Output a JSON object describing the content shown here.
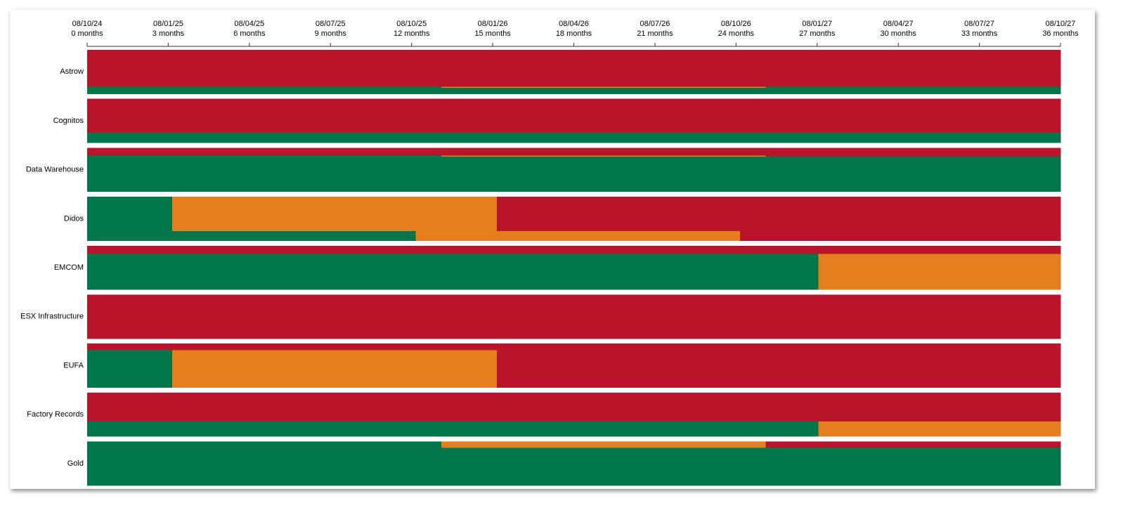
{
  "chart_data": {
    "type": "timeline",
    "title": "",
    "x_unit": "months",
    "xlim": [
      0,
      36
    ],
    "colors": {
      "red": "#b8152a",
      "orange": "#e67e1e",
      "green": "#00764a"
    },
    "ticks": [
      {
        "date": "08/10/24",
        "months": "0 months"
      },
      {
        "date": "08/01/25",
        "months": "3 months"
      },
      {
        "date": "08/04/25",
        "months": "6 months"
      },
      {
        "date": "08/07/25",
        "months": "9 months"
      },
      {
        "date": "08/10/25",
        "months": "12 months"
      },
      {
        "date": "08/01/26",
        "months": "15 months"
      },
      {
        "date": "08/04/26",
        "months": "18 months"
      },
      {
        "date": "08/07/26",
        "months": "21 months"
      },
      {
        "date": "08/10/26",
        "months": "24 months"
      },
      {
        "date": "08/01/27",
        "months": "27 months"
      },
      {
        "date": "08/04/27",
        "months": "30 months"
      },
      {
        "date": "08/07/27",
        "months": "33 months"
      },
      {
        "date": "08/10/27",
        "months": "36 months"
      }
    ],
    "rows": [
      {
        "label": "Astrow",
        "lanes": [
          {
            "share": 0.84,
            "segments": [
              {
                "start": 0,
                "end": 36,
                "status": "red"
              }
            ]
          },
          {
            "share": 0.02,
            "segments": [
              {
                "start": 0,
                "end": 13.1,
                "status": "green"
              },
              {
                "start": 13.1,
                "end": 25.1,
                "status": "orange"
              },
              {
                "start": 25.1,
                "end": 36,
                "status": "green"
              }
            ]
          },
          {
            "share": 0.14,
            "segments": [
              {
                "start": 0,
                "end": 36,
                "status": "green"
              }
            ]
          }
        ]
      },
      {
        "label": "Cognitos",
        "lanes": [
          {
            "share": 0.77,
            "segments": [
              {
                "start": 0,
                "end": 36,
                "status": "red"
              }
            ]
          },
          {
            "share": 0.23,
            "segments": [
              {
                "start": 0,
                "end": 36,
                "status": "green"
              }
            ]
          }
        ]
      },
      {
        "label": "Data Warehouse",
        "lanes": [
          {
            "share": 0.18,
            "segments": [
              {
                "start": 0,
                "end": 36,
                "status": "red"
              }
            ]
          },
          {
            "share": 0.02,
            "segments": [
              {
                "start": 0,
                "end": 13.1,
                "status": "green"
              },
              {
                "start": 13.1,
                "end": 25.1,
                "status": "orange"
              },
              {
                "start": 25.1,
                "end": 36,
                "status": "red"
              }
            ]
          },
          {
            "share": 0.8,
            "segments": [
              {
                "start": 0,
                "end": 36,
                "status": "green"
              }
            ]
          }
        ]
      },
      {
        "label": "Didos",
        "lanes": [
          {
            "share": 0.78,
            "segments": [
              {
                "start": 0,
                "end": 3.15,
                "status": "green"
              },
              {
                "start": 3.15,
                "end": 15.15,
                "status": "orange"
              },
              {
                "start": 15.15,
                "end": 36,
                "status": "red"
              }
            ]
          },
          {
            "share": 0.22,
            "segments": [
              {
                "start": 0,
                "end": 12.15,
                "status": "green"
              },
              {
                "start": 12.15,
                "end": 24.15,
                "status": "orange"
              },
              {
                "start": 24.15,
                "end": 36,
                "status": "red"
              }
            ]
          }
        ]
      },
      {
        "label": "EMCOM",
        "lanes": [
          {
            "share": 0.19,
            "segments": [
              {
                "start": 0,
                "end": 36,
                "status": "red"
              }
            ]
          },
          {
            "share": 0.81,
            "segments": [
              {
                "start": 0,
                "end": 27.05,
                "status": "green"
              },
              {
                "start": 27.05,
                "end": 36,
                "status": "orange"
              }
            ]
          }
        ]
      },
      {
        "label": "ESX Infrastructure",
        "lanes": [
          {
            "share": 1.0,
            "segments": [
              {
                "start": 0,
                "end": 36,
                "status": "red"
              }
            ]
          }
        ]
      },
      {
        "label": "EUFA",
        "lanes": [
          {
            "share": 0.15,
            "segments": [
              {
                "start": 0,
                "end": 36,
                "status": "red"
              }
            ]
          },
          {
            "share": 0.85,
            "segments": [
              {
                "start": 0,
                "end": 3.15,
                "status": "green"
              },
              {
                "start": 3.15,
                "end": 15.15,
                "status": "orange"
              },
              {
                "start": 15.15,
                "end": 36,
                "status": "red"
              }
            ]
          }
        ]
      },
      {
        "label": "Factory Records",
        "lanes": [
          {
            "share": 0.66,
            "segments": [
              {
                "start": 0,
                "end": 36,
                "status": "red"
              }
            ]
          },
          {
            "share": 0.34,
            "segments": [
              {
                "start": 0,
                "end": 27.05,
                "status": "green"
              },
              {
                "start": 27.05,
                "end": 36,
                "status": "orange"
              }
            ]
          }
        ]
      },
      {
        "label": "Gold",
        "lanes": [
          {
            "share": 0.14,
            "segments": [
              {
                "start": 0,
                "end": 13.1,
                "status": "green"
              },
              {
                "start": 13.1,
                "end": 25.1,
                "status": "orange"
              },
              {
                "start": 25.1,
                "end": 36,
                "status": "red"
              }
            ]
          },
          {
            "share": 0.86,
            "segments": [
              {
                "start": 0,
                "end": 36,
                "status": "green"
              }
            ]
          }
        ]
      }
    ]
  }
}
